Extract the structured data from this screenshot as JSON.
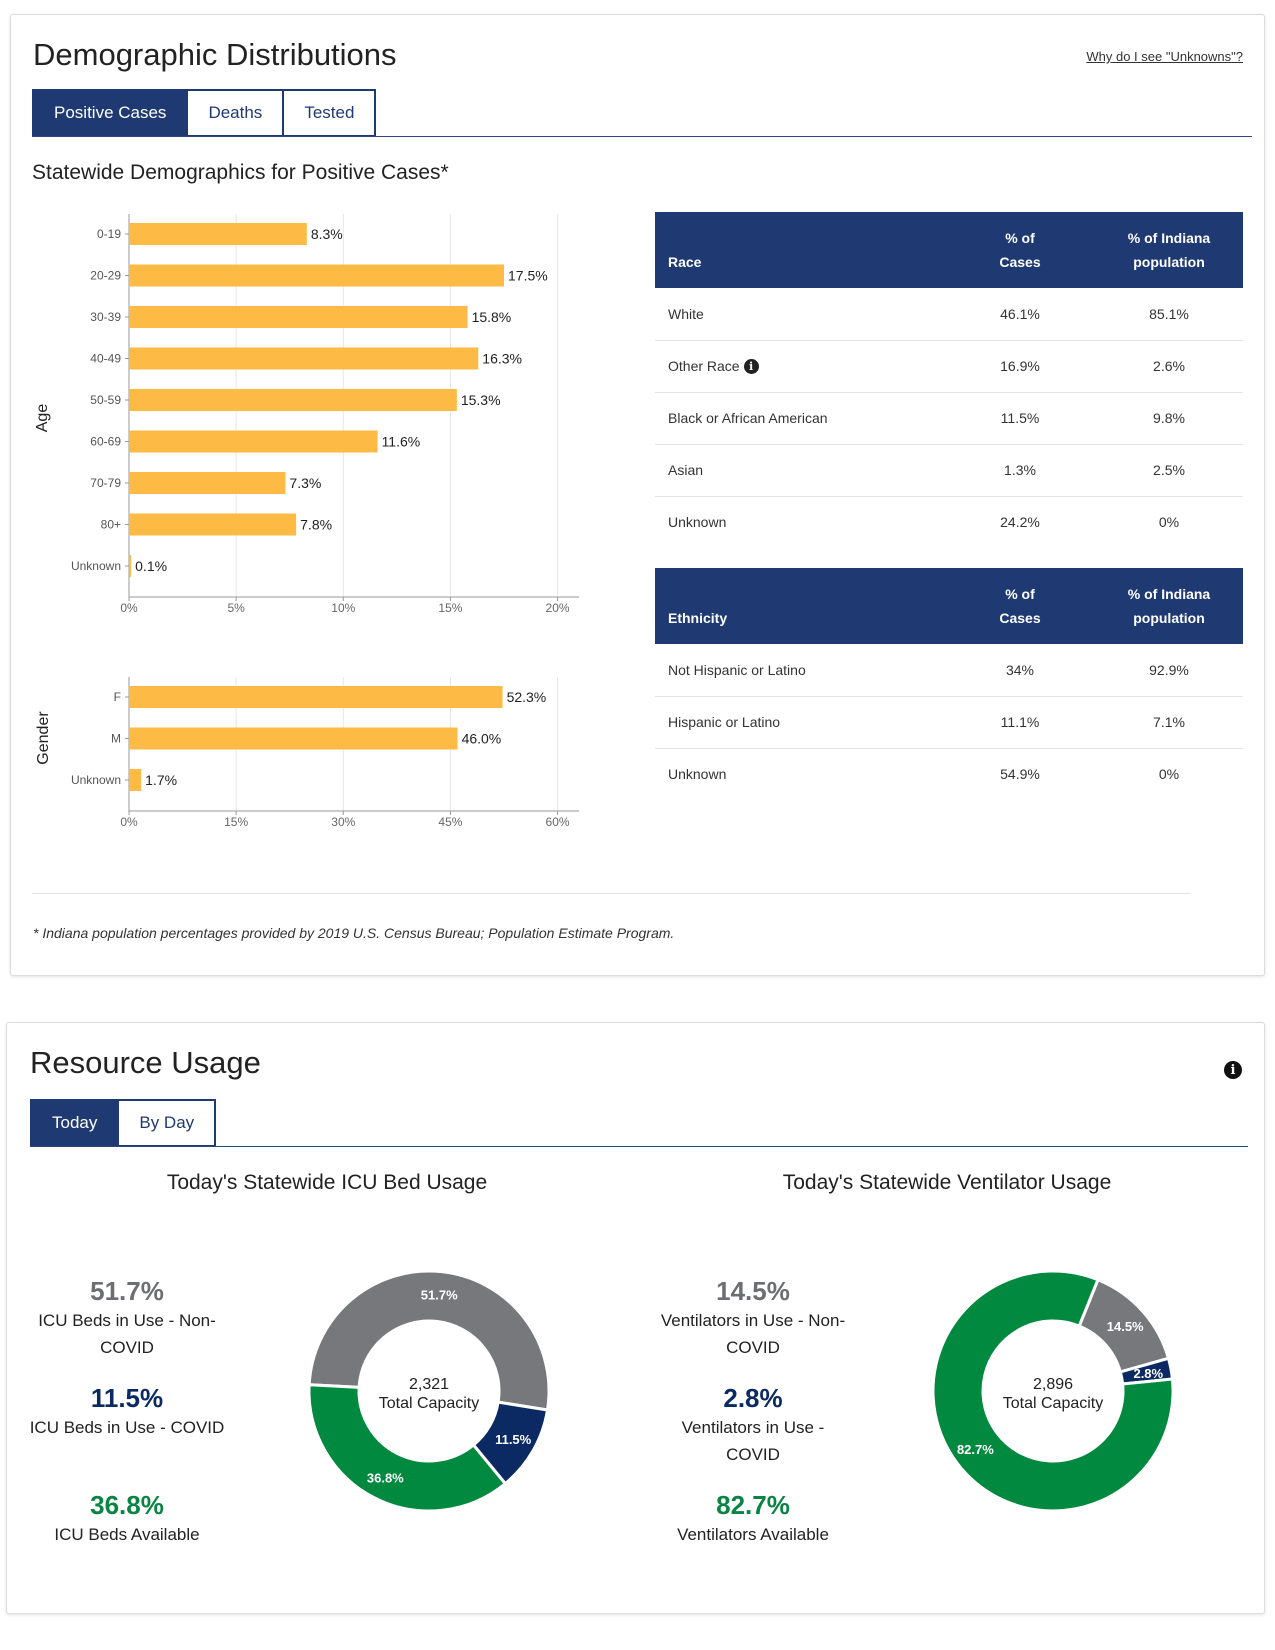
{
  "demographics": {
    "title": "Demographic Distributions",
    "help_link": "Why do I see \"Unknowns\"?",
    "tabs": [
      {
        "label": "Positive Cases",
        "active": true
      },
      {
        "label": "Deaths",
        "active": false
      },
      {
        "label": "Tested",
        "active": false
      }
    ],
    "section_title": "Statewide Demographics for Positive Cases*",
    "age_axis_label": "Age",
    "gender_axis_label": "Gender",
    "race_table": {
      "headers": [
        "Race",
        "% of\nCases",
        "% of Indiana\npopulation"
      ],
      "rows": [
        [
          "White",
          "46.1%",
          "85.1%"
        ],
        [
          "Other Race",
          "16.9%",
          "2.6%"
        ],
        [
          "Black or African American",
          "11.5%",
          "9.8%"
        ],
        [
          "Asian",
          "1.3%",
          "2.5%"
        ],
        [
          "Unknown",
          "24.2%",
          "0%"
        ]
      ]
    },
    "ethnicity_table": {
      "headers": [
        "Ethnicity",
        "% of\nCases",
        "% of Indiana\npopulation"
      ],
      "rows": [
        [
          "Not Hispanic or Latino",
          "34%",
          "92.9%"
        ],
        [
          "Hispanic or Latino",
          "11.1%",
          "7.1%"
        ],
        [
          "Unknown",
          "54.9%",
          "0%"
        ]
      ]
    },
    "footnote": "* Indiana population percentages provided by 2019 U.S. Census Bureau; Population Estimate Program."
  },
  "resources": {
    "title": "Resource Usage",
    "tabs": [
      {
        "label": "Today",
        "active": true
      },
      {
        "label": "By Day",
        "active": false
      }
    ],
    "icu": {
      "heading": "Today's Statewide ICU Bed Usage",
      "stats": [
        {
          "value": "51.7%",
          "label": "ICU Beds in Use - Non-COVID",
          "color": "#6d6e71"
        },
        {
          "value": "11.5%",
          "label": "ICU Beds in Use - COVID",
          "color": "#0b2a63"
        },
        {
          "value": "36.8%",
          "label": "ICU Beds Available",
          "color": "#0a8443"
        }
      ],
      "center_value": "2,321",
      "center_label": "Total Capacity"
    },
    "vent": {
      "heading": "Today's Statewide Ventilator Usage",
      "stats": [
        {
          "value": "14.5%",
          "label": "Ventilators in Use - Non-COVID",
          "color": "#6d6e71"
        },
        {
          "value": "2.8%",
          "label": "Ventilators in Use - COVID",
          "color": "#0b2a63"
        },
        {
          "value": "82.7%",
          "label": "Ventilators Available",
          "color": "#0a8443"
        }
      ],
      "center_value": "2,896",
      "center_label": "Total Capacity"
    }
  },
  "colors": {
    "bar": "#fdbb45",
    "navy": "#1f3a72",
    "gray": "#77787b",
    "dark_navy": "#0b2a63",
    "green": "#00893f"
  },
  "chart_data": [
    {
      "type": "bar",
      "orientation": "horizontal",
      "title": "Age",
      "categories": [
        "0-19",
        "20-29",
        "30-39",
        "40-49",
        "50-59",
        "60-69",
        "70-79",
        "80+",
        "Unknown"
      ],
      "values": [
        8.3,
        17.5,
        15.8,
        16.3,
        15.3,
        11.6,
        7.3,
        7.8,
        0.1
      ],
      "data_labels": [
        "8.3%",
        "17.5%",
        "15.8%",
        "16.3%",
        "15.3%",
        "11.6%",
        "7.3%",
        "7.8%",
        "0.1%"
      ],
      "xlim": [
        0,
        21
      ],
      "xticks": [
        "0%",
        "5%",
        "10%",
        "15%",
        "20%"
      ],
      "xtick_values": [
        0,
        5,
        10,
        15,
        20
      ],
      "ylabel": "Age"
    },
    {
      "type": "bar",
      "orientation": "horizontal",
      "title": "Gender",
      "categories": [
        "F",
        "M",
        "Unknown"
      ],
      "values": [
        52.3,
        46.0,
        1.7
      ],
      "data_labels": [
        "52.3%",
        "46.0%",
        "1.7%"
      ],
      "xlim": [
        0,
        63
      ],
      "xticks": [
        "0%",
        "15%",
        "30%",
        "45%",
        "60%"
      ],
      "xtick_values": [
        0,
        15,
        30,
        45,
        60
      ],
      "ylabel": "Gender"
    },
    {
      "type": "pie",
      "title": "Today's Statewide ICU Bed Usage",
      "categories": [
        "ICU Beds in Use - Non-COVID",
        "ICU Beds in Use - COVID",
        "ICU Beds Available"
      ],
      "values": [
        51.7,
        11.5,
        36.8
      ],
      "data_labels": [
        "51.7%",
        "11.5%",
        "36.8%"
      ],
      "total": "2,321"
    },
    {
      "type": "pie",
      "title": "Today's Statewide Ventilator Usage",
      "categories": [
        "Ventilators in Use - Non-COVID",
        "Ventilators in Use - COVID",
        "Ventilators Available"
      ],
      "values": [
        14.5,
        2.8,
        82.7
      ],
      "data_labels": [
        "14.5%",
        "2.8%",
        "82.7%"
      ],
      "total": "2,896"
    }
  ]
}
